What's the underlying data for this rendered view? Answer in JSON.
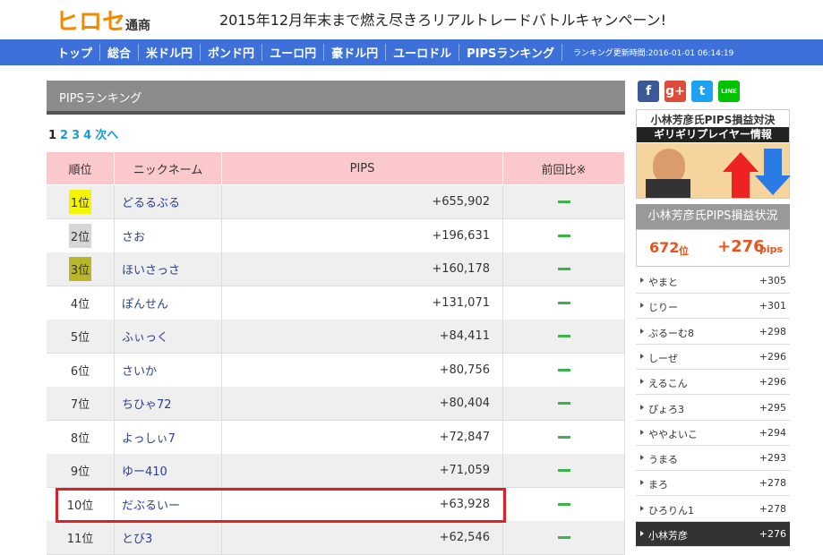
{
  "header": {
    "brand": "ヒロセ",
    "brand_suffix": "通商",
    "campaign": "2015年12月年末まで燃え尽きろリアルトレードバトルキャンペーン!"
  },
  "nav": {
    "items": [
      "トップ",
      "総合",
      "米ドル円",
      "ポンド円",
      "ユーロ円",
      "豪ドル円",
      "ユーロドル",
      "PIPSランキング"
    ],
    "update": "ランキング更新時間:2016-01-01 06:14:19"
  },
  "main": {
    "title": "PIPSランキング",
    "pages": [
      "1",
      "2",
      "3",
      "4",
      "次へ"
    ],
    "table": {
      "headers": [
        "順位",
        "ニックネーム",
        "PIPS",
        "前回比※"
      ],
      "rows": [
        [
          "1位",
          "どるるぶる",
          "+655,902"
        ],
        [
          "2位",
          "さお",
          "+196,631"
        ],
        [
          "3位",
          "ほいさっさ",
          "+160,178"
        ],
        [
          "4位",
          "ぽんせん",
          "+131,071"
        ],
        [
          "5位",
          "ふぃっく",
          "+84,411"
        ],
        [
          "6位",
          "さいか",
          "+80,756"
        ],
        [
          "7位",
          "ちひゃ72",
          "+80,404"
        ],
        [
          "8位",
          "よっしぃ7",
          "+72,847"
        ],
        [
          "9位",
          "ゆー410",
          "+71,059"
        ],
        [
          "10位",
          "だぶるいー",
          "+63,928"
        ],
        [
          "11位",
          "とび3",
          "+62,546"
        ]
      ]
    }
  },
  "sidebar": {
    "social": [
      "f",
      "g+",
      "t",
      "LINE"
    ],
    "banner": {
      "line1": "小林芳彦氏PIPS損益対決",
      "line2": "ギリギリプレイヤー情報"
    },
    "status_title": "小林芳彦氏PIPS損益状況",
    "rank_value": "672",
    "rank_unit": "位",
    "pips_value": "+276",
    "pips_unit": "pips",
    "list": [
      [
        "やまと",
        "+305"
      ],
      [
        "じりー",
        "+301"
      ],
      [
        "ぶるーむ8",
        "+298"
      ],
      [
        "しーぜ",
        "+296"
      ],
      [
        "えるこん",
        "+296"
      ],
      [
        "ぴょろ3",
        "+295"
      ],
      [
        "ややよいこ",
        "+294"
      ],
      [
        "うまる",
        "+293"
      ],
      [
        "まろ",
        "+278"
      ],
      [
        "ひろりん1",
        "+278"
      ],
      [
        "小林芳彦",
        "+276"
      ]
    ]
  }
}
